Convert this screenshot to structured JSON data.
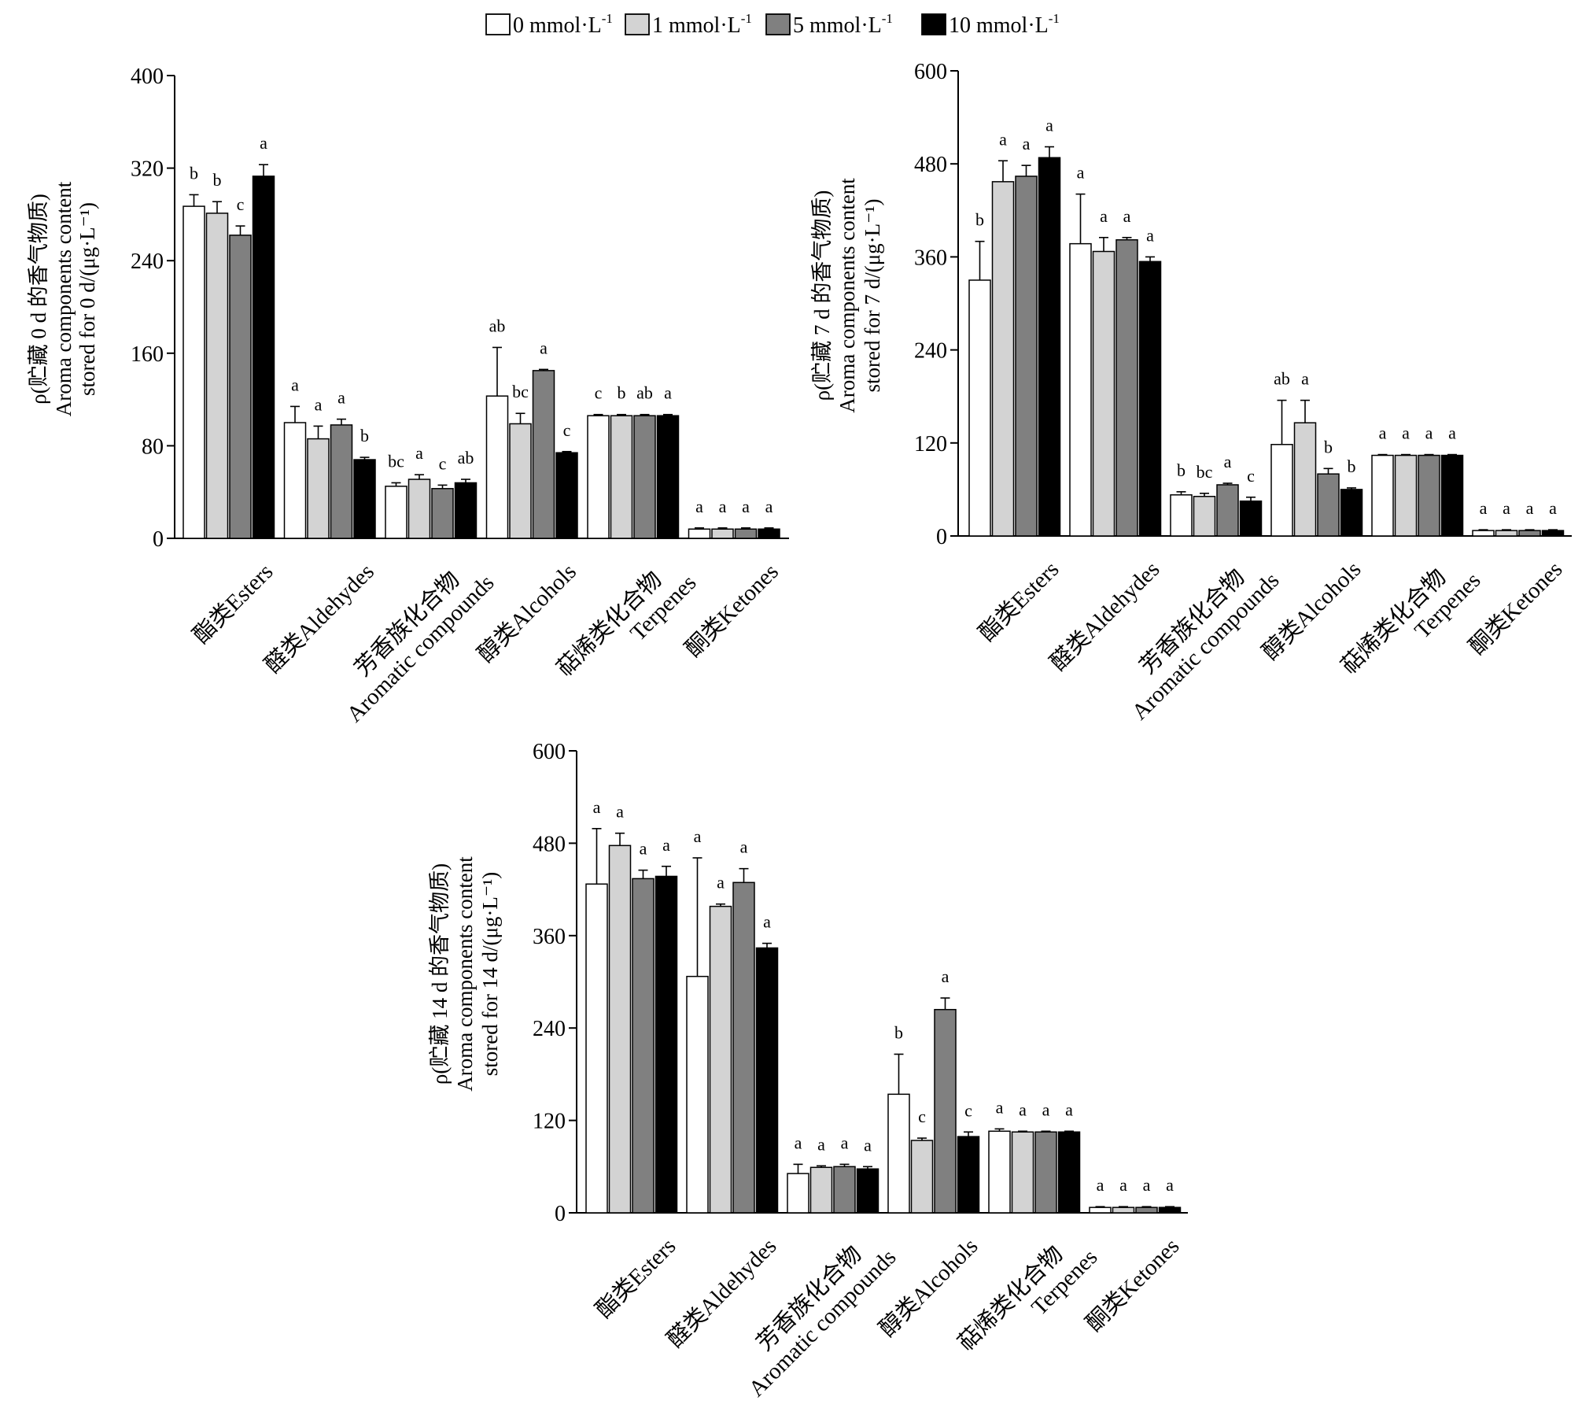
{
  "legend": {
    "entries": [
      {
        "label": "0 mmol·L",
        "sup": "-1",
        "color": "#ffffff"
      },
      {
        "label": "1 mmol·L",
        "sup": "-1",
        "color": "#d3d3d3"
      },
      {
        "label": "5 mmol·L",
        "sup": "-1",
        "color": "#808080"
      },
      {
        "label": "10 mmol·L",
        "sup": "-1",
        "color": "#000000"
      }
    ]
  },
  "chart_data": [
    {
      "type": "bar",
      "ylabel": [
        "ρ(贮藏 0 d 的香气物质)",
        "Aroma components content",
        "stored for 0 d/(μg·L⁻¹)"
      ],
      "ylim": [
        0,
        400
      ],
      "yticks": [
        0,
        80,
        160,
        240,
        320,
        400
      ],
      "categories": [
        [
          "酯类Esters"
        ],
        [
          "醛类Aldehydes"
        ],
        [
          "芳香族化合物",
          "Aromatic compounds"
        ],
        [
          "醇类Alcohols"
        ],
        [
          "萜烯类化合物",
          "Terpenes"
        ],
        [
          "酮类Ketones"
        ]
      ],
      "series": [
        {
          "name": "0 mmol·L-1",
          "values": [
            287,
            100,
            45,
            123,
            106,
            8
          ],
          "errors": [
            10,
            14,
            3,
            42,
            1,
            1
          ],
          "sig": [
            "b",
            "a",
            "bc",
            "ab",
            "c",
            "a"
          ]
        },
        {
          "name": "1 mmol·L-1",
          "values": [
            281,
            86,
            51,
            99,
            106,
            8
          ],
          "errors": [
            10,
            11,
            4,
            9,
            1,
            1
          ],
          "sig": [
            "b",
            "a",
            "a",
            "bc",
            "b",
            "a"
          ]
        },
        {
          "name": "5 mmol·L-1",
          "values": [
            262,
            98,
            43,
            145,
            106,
            8
          ],
          "errors": [
            8,
            5,
            3,
            1,
            1,
            1
          ],
          "sig": [
            "c",
            "a",
            "c",
            "a",
            "ab",
            "a"
          ]
        },
        {
          "name": "10 mmol·L-1",
          "values": [
            313,
            68,
            48,
            74,
            106,
            8
          ],
          "errors": [
            10,
            2,
            3,
            1,
            1,
            1
          ],
          "sig": [
            "a",
            "b",
            "ab",
            "c",
            "a",
            "a"
          ]
        }
      ]
    },
    {
      "type": "bar",
      "ylabel": [
        "ρ(贮藏 7 d 的香气物质)",
        "Aroma components content",
        "stored for 7 d/(μg·L⁻¹)"
      ],
      "ylim": [
        0,
        600
      ],
      "yticks": [
        0,
        120,
        240,
        360,
        480,
        600
      ],
      "categories": [
        [
          "酯类Esters"
        ],
        [
          "醛类Aldehydes"
        ],
        [
          "芳香族化合物",
          "Aromatic compounds"
        ],
        [
          "醇类Alcohols"
        ],
        [
          "萜烯类化合物",
          "Terpenes"
        ],
        [
          "酮类Ketones"
        ]
      ],
      "series": [
        {
          "name": "0 mmol·L-1",
          "values": [
            330,
            377,
            53,
            118,
            104,
            7
          ],
          "errors": [
            50,
            64,
            4,
            57,
            1,
            1
          ],
          "sig": [
            "b",
            "a",
            "b",
            "ab",
            "a",
            "a"
          ]
        },
        {
          "name": "1 mmol·L-1",
          "values": [
            457,
            367,
            51,
            146,
            104,
            7
          ],
          "errors": [
            27,
            18,
            4,
            29,
            1,
            1
          ],
          "sig": [
            "a",
            "a",
            "bc",
            "a",
            "a",
            "a"
          ]
        },
        {
          "name": "5 mmol·L-1",
          "values": [
            464,
            382,
            66,
            80,
            104,
            7
          ],
          "errors": [
            14,
            3,
            2,
            7,
            1,
            1
          ],
          "sig": [
            "a",
            "a",
            "a",
            "b",
            "a",
            "a"
          ]
        },
        {
          "name": "10 mmol·L-1",
          "values": [
            488,
            354,
            45,
            60,
            104,
            7
          ],
          "errors": [
            14,
            6,
            5,
            2,
            1,
            1
          ],
          "sig": [
            "a",
            "a",
            "c",
            "b",
            "a",
            "a"
          ]
        }
      ]
    },
    {
      "type": "bar",
      "ylabel": [
        "ρ(贮藏 14 d 的香气物质)",
        "Aroma components content",
        "stored for 14 d/(μg·L⁻¹)"
      ],
      "ylim": [
        0,
        600
      ],
      "yticks": [
        0,
        120,
        240,
        360,
        480,
        600
      ],
      "categories": [
        [
          "酯类Esters"
        ],
        [
          "醛类Aldehydes"
        ],
        [
          "芳香族化合物",
          "Aromatic compounds"
        ],
        [
          "醇类Alcohols"
        ],
        [
          "萜烯类化合物",
          "Terpenes"
        ],
        [
          "酮类Ketones"
        ]
      ],
      "series": [
        {
          "name": "0 mmol·L-1",
          "values": [
            427,
            307,
            51,
            154,
            106,
            7
          ],
          "errors": [
            72,
            154,
            12,
            52,
            3,
            1
          ],
          "sig": [
            "a",
            "a",
            "a",
            "b",
            "a",
            "a"
          ]
        },
        {
          "name": "1 mmol·L-1",
          "values": [
            477,
            398,
            59,
            94,
            105,
            7
          ],
          "errors": [
            16,
            3,
            2,
            3,
            1,
            1
          ],
          "sig": [
            "a",
            "a",
            "a",
            "c",
            "a",
            "a"
          ]
        },
        {
          "name": "5 mmol·L-1",
          "values": [
            434,
            429,
            60,
            264,
            105,
            7
          ],
          "errors": [
            11,
            18,
            3,
            15,
            1,
            1
          ],
          "sig": [
            "a",
            "a",
            "a",
            "a",
            "a",
            "a"
          ]
        },
        {
          "name": "10 mmol·L-1",
          "values": [
            437,
            344,
            57,
            99,
            105,
            7
          ],
          "errors": [
            13,
            6,
            3,
            6,
            1,
            1
          ],
          "sig": [
            "a",
            "a",
            "a",
            "c",
            "a",
            "a"
          ]
        }
      ]
    }
  ]
}
